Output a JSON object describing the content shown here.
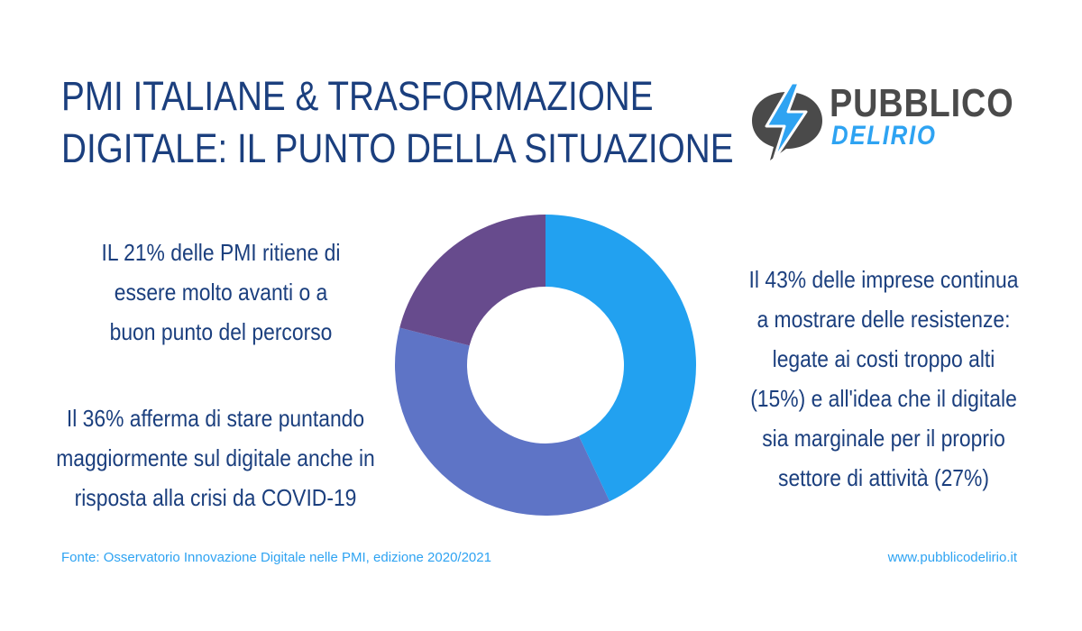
{
  "title": {
    "line1": "PMI ITALIANE & TRASFORMAZIONE",
    "line2": "DIGITALE: IL PUNTO DELLA SITUAZIONE"
  },
  "logo": {
    "word1": "PUBBLICO",
    "word2": "DELIRIO",
    "icon": "lightning-bubble-icon"
  },
  "callouts": {
    "left_top": [
      "IL 21% delle PMI ritiene di",
      "essere molto avanti o a",
      "buon punto del percorso"
    ],
    "left_bottom": [
      "Il 36% afferma di stare puntando",
      "maggiormente sul digitale anche in",
      "risposta alla crisi da COVID-19"
    ],
    "right": [
      "Il 43% delle imprese continua",
      "a mostrare delle resistenze:",
      "legate ai costi troppo alti",
      "(15%) e all'idea che il digitale",
      "sia marginale per il proprio",
      "settore di attività (27%)"
    ]
  },
  "footer": {
    "source": "Fonte: Osservatorio Innovazione Digitale nelle PMI, edizione 2020/2021",
    "website": "www.pubblicodelirio.it"
  },
  "colors": {
    "title": "#1b3f7e",
    "accent": "#2ea3f2",
    "logo_dark": "#4a4a4a"
  },
  "chart_data": {
    "type": "pie",
    "donut": true,
    "categories": [
      "43%",
      "36%",
      "21%"
    ],
    "values": [
      43,
      36,
      21
    ],
    "colors": [
      "#22a1f0",
      "#5e74c6",
      "#674b8d"
    ],
    "start": "top",
    "direction": "clockwise"
  }
}
